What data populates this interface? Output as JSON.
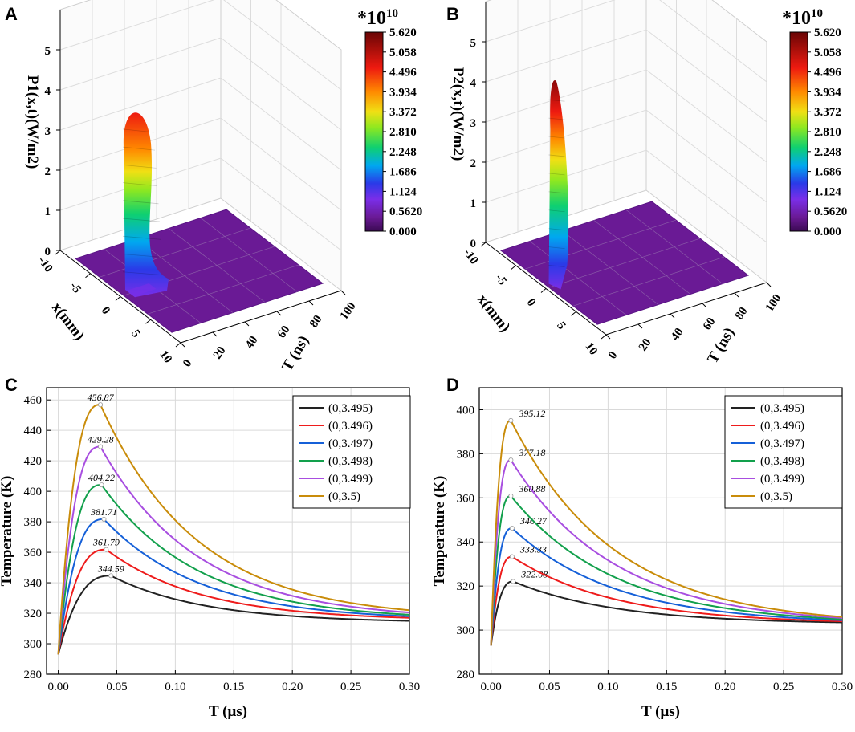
{
  "colors": {
    "series": [
      "#222222",
      "#ee1c1c",
      "#1560d8",
      "#12a04c",
      "#a84ee0",
      "#c98c0a"
    ],
    "floor": "#6a1a95",
    "grid": "#d9d9d9"
  },
  "chart_data": [
    {
      "panel": "A",
      "type": "surface",
      "zlabel": "P1(x,t)(W/m2)",
      "xlabel": "x(mm)",
      "ylabel": "T (ns)",
      "x_ticks": [
        "-10",
        "-5",
        "0",
        "5",
        "10"
      ],
      "t_ticks": [
        "0",
        "20",
        "40",
        "60",
        "80",
        "100"
      ],
      "z_ticks": [
        "0",
        "1",
        "2",
        "3",
        "4",
        "5"
      ],
      "colorbar": {
        "multiplier_base": "*10",
        "multiplier_exp": "10",
        "ticks": [
          "5.620",
          "5.058",
          "4.496",
          "3.934",
          "3.372",
          "2.810",
          "2.248",
          "1.686",
          "1.124",
          "0.5620",
          "0.000"
        ]
      },
      "peak_value": 4.5
    },
    {
      "panel": "B",
      "type": "surface",
      "zlabel": "P2(x,t)(W/m2)",
      "xlabel": "x(mm)",
      "ylabel": "T (ns)",
      "x_ticks": [
        "-10",
        "-5",
        "0",
        "5",
        "10"
      ],
      "t_ticks": [
        "0",
        "20",
        "40",
        "60",
        "80",
        "100"
      ],
      "z_ticks": [
        "0",
        "1",
        "2",
        "3",
        "4",
        "5"
      ],
      "colorbar": {
        "multiplier_base": "*10",
        "multiplier_exp": "10",
        "ticks": [
          "5.620",
          "5.058",
          "4.496",
          "3.934",
          "3.372",
          "2.810",
          "2.248",
          "1.686",
          "1.124",
          "0.5620",
          "0.000"
        ]
      },
      "peak_value": 5.1
    },
    {
      "panel": "C",
      "type": "line",
      "xlabel": "T (μs)",
      "ylabel": "Temperature (K)",
      "xlim": [
        -0.01,
        0.3
      ],
      "ylim": [
        280,
        468
      ],
      "x_ticks": [
        0.0,
        0.05,
        0.1,
        0.15,
        0.2,
        0.25,
        0.3
      ],
      "x_tick_labels": [
        "0.00",
        "0.05",
        "0.10",
        "0.15",
        "0.20",
        "0.25",
        "0.30"
      ],
      "y_ticks": [
        280,
        300,
        320,
        340,
        360,
        380,
        400,
        420,
        440,
        460
      ],
      "y_tick_labels": [
        "280",
        "300",
        "320",
        "340",
        "360",
        "380",
        "400",
        "420",
        "440",
        "460"
      ],
      "base": 293,
      "tail_at_030": [
        315,
        317,
        318,
        319,
        320.5,
        322
      ],
      "peak_time": [
        0.045,
        0.041,
        0.039,
        0.037,
        0.036,
        0.036
      ],
      "series": [
        {
          "name": "(0,3.495)",
          "peak": 344.59,
          "peak_label": "344.59"
        },
        {
          "name": "(0,3.496)",
          "peak": 361.79,
          "peak_label": "361.79"
        },
        {
          "name": "(0,3.497)",
          "peak": 381.71,
          "peak_label": "381.71"
        },
        {
          "name": "(0,3.498)",
          "peak": 404.22,
          "peak_label": "404.22"
        },
        {
          "name": "(0,3.499)",
          "peak": 429.28,
          "peak_label": "429.28"
        },
        {
          "name": "(0,3.5)",
          "peak": 456.87,
          "peak_label": "456.87"
        }
      ]
    },
    {
      "panel": "D",
      "type": "line",
      "xlabel": "T (μs)",
      "ylabel": "Temperature (K)",
      "xlim": [
        -0.01,
        0.3
      ],
      "ylim": [
        280,
        410
      ],
      "x_ticks": [
        0.0,
        0.05,
        0.1,
        0.15,
        0.2,
        0.25,
        0.3
      ],
      "x_tick_labels": [
        "0.00",
        "0.05",
        "0.10",
        "0.15",
        "0.20",
        "0.25",
        "0.30"
      ],
      "y_ticks": [
        280,
        300,
        320,
        340,
        360,
        380,
        400
      ],
      "y_tick_labels": [
        "280",
        "300",
        "320",
        "340",
        "360",
        "380",
        "400"
      ],
      "base": 293,
      "tail_at_030": [
        303.5,
        304,
        304.5,
        305,
        305.5,
        306
      ],
      "peak_time": [
        0.019,
        0.018,
        0.018,
        0.017,
        0.017,
        0.017
      ],
      "series": [
        {
          "name": "(0,3.495)",
          "peak": 322.08,
          "peak_label": "322.08"
        },
        {
          "name": "(0,3.496)",
          "peak": 333.33,
          "peak_label": "333.33"
        },
        {
          "name": "(0,3.497)",
          "peak": 346.27,
          "peak_label": "346.27"
        },
        {
          "name": "(0,3.498)",
          "peak": 360.88,
          "peak_label": "360.88"
        },
        {
          "name": "(0,3.499)",
          "peak": 377.18,
          "peak_label": "377.18"
        },
        {
          "name": "(0,3.5)",
          "peak": 395.12,
          "peak_label": "395.12"
        }
      ]
    }
  ]
}
